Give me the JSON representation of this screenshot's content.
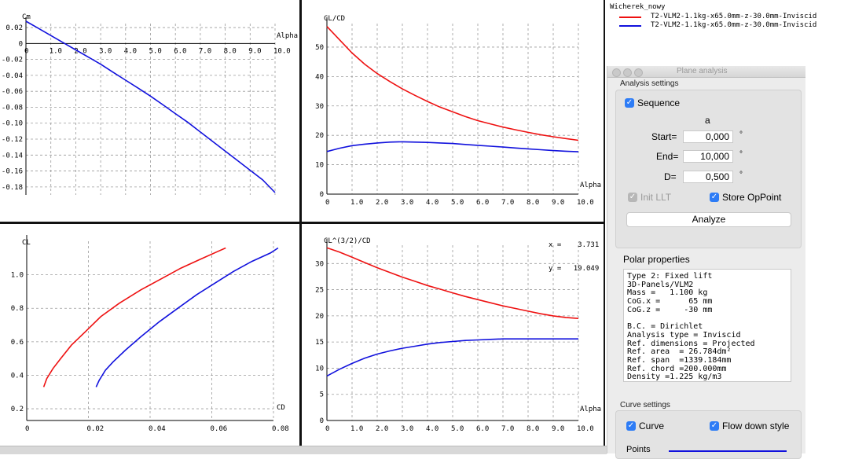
{
  "legend": {
    "title": "Wicherek_nowy",
    "entries": [
      {
        "label": "T2-VLM2-1.1kg-x65.0mm-z-30.0mm-Inviscid",
        "color": "#ee1111"
      },
      {
        "label": "T2-VLM2-1.1kg-x65.0mm-z-30.0mm-Inviscid",
        "color": "#1111dd"
      }
    ]
  },
  "cursor": {
    "x_label": "x =",
    "x_value": "3.731",
    "y_label": "y =",
    "y_value": "19.049"
  },
  "chart_data": [
    {
      "type": "line",
      "id": "cm",
      "ylabel": "Cm",
      "xlabel": "Alpha",
      "xlim": [
        0,
        10
      ],
      "ylim": [
        -0.19,
        0.025
      ],
      "xticks": [
        "0",
        "1.0",
        "2.0",
        "3.0",
        "4.0",
        "5.0",
        "6.0",
        "7.0",
        "8.0",
        "9.0",
        "10.0"
      ],
      "xtick_values": [
        0,
        1,
        2,
        3,
        4,
        5,
        6,
        7,
        8,
        9,
        10
      ],
      "yticks": [
        "0.02",
        "0",
        "-0.02",
        "-0.04",
        "-0.06",
        "-0.08",
        "-0.10",
        "-0.12",
        "-0.14",
        "-0.16",
        "-0.18"
      ],
      "ytick_values": [
        0.02,
        0,
        -0.02,
        -0.04,
        -0.06,
        -0.08,
        -0.1,
        -0.12,
        -0.14,
        -0.16,
        -0.18
      ],
      "series": [
        {
          "name": "blue",
          "color": "#1111dd",
          "x": [
            0,
            0.5,
            1,
            1.5,
            2,
            2.5,
            3,
            3.5,
            4,
            4.5,
            5,
            5.5,
            6,
            6.5,
            7,
            7.5,
            8,
            8.5,
            9,
            9.5,
            10
          ],
          "y": [
            0.028,
            0.019,
            0.01,
            0.001,
            -0.008,
            -0.017,
            -0.026,
            -0.036,
            -0.046,
            -0.056,
            -0.066,
            -0.077,
            -0.088,
            -0.099,
            -0.111,
            -0.123,
            -0.135,
            -0.147,
            -0.159,
            -0.171,
            -0.187
          ]
        }
      ]
    },
    {
      "type": "line",
      "id": "clcd",
      "ylabel": "CL/CD",
      "xlabel": "Alpha",
      "xlim": [
        0,
        10
      ],
      "ylim": [
        0,
        58
      ],
      "xticks": [
        "0",
        "1.0",
        "2.0",
        "3.0",
        "4.0",
        "5.0",
        "6.0",
        "7.0",
        "8.0",
        "9.0",
        "10.0"
      ],
      "xtick_values": [
        0,
        1,
        2,
        3,
        4,
        5,
        6,
        7,
        8,
        9,
        10
      ],
      "yticks": [
        "0",
        "10",
        "20",
        "30",
        "40",
        "50"
      ],
      "ytick_values": [
        0,
        10,
        20,
        30,
        40,
        50
      ],
      "series": [
        {
          "name": "red",
          "color": "#ee1111",
          "x": [
            0,
            0.5,
            1,
            1.5,
            2,
            2.5,
            3,
            3.5,
            4,
            4.5,
            5,
            5.5,
            6,
            6.5,
            7,
            7.5,
            8,
            8.5,
            9,
            9.5,
            10
          ],
          "y": [
            57,
            52.5,
            48,
            44.2,
            41,
            38.3,
            35.8,
            33.6,
            31.5,
            29.6,
            28,
            26.4,
            25,
            23.9,
            22.8,
            21.9,
            21,
            20.2,
            19.5,
            18.9,
            18.3
          ]
        },
        {
          "name": "blue",
          "color": "#1111dd",
          "x": [
            0,
            0.5,
            1,
            1.5,
            2,
            2.5,
            3,
            3.5,
            4,
            4.5,
            5,
            5.5,
            6,
            6.5,
            7,
            7.5,
            8,
            8.5,
            9,
            9.5,
            10
          ],
          "y": [
            14.5,
            15.6,
            16.5,
            17,
            17.4,
            17.7,
            17.8,
            17.7,
            17.6,
            17.4,
            17.2,
            16.9,
            16.6,
            16.3,
            16,
            15.7,
            15.4,
            15.1,
            14.8,
            14.6,
            14.4
          ]
        }
      ]
    },
    {
      "type": "line",
      "id": "cl_cd",
      "ylabel": "CL",
      "xlabel": "CD",
      "xlim": [
        0,
        0.08
      ],
      "ylim": [
        0.13,
        1.2
      ],
      "xticks": [
        "0",
        "0.02",
        "0.04",
        "0.06",
        "0.08"
      ],
      "xtick_values": [
        0,
        0.02,
        0.04,
        0.06,
        0.08
      ],
      "yticks": [
        "0.2",
        "0.4",
        "0.6",
        "0.8",
        "1.0"
      ],
      "ytick_values": [
        0.2,
        0.4,
        0.6,
        0.8,
        1.0
      ],
      "series": [
        {
          "name": "red",
          "color": "#ee1111",
          "x": [
            0.0055,
            0.0065,
            0.0085,
            0.011,
            0.0145,
            0.019,
            0.024,
            0.03,
            0.037,
            0.044,
            0.05,
            0.056,
            0.062,
            0.0645
          ],
          "y": [
            0.33,
            0.38,
            0.44,
            0.5,
            0.58,
            0.66,
            0.75,
            0.83,
            0.91,
            0.98,
            1.04,
            1.09,
            1.14,
            1.16
          ]
        },
        {
          "name": "blue",
          "color": "#1111dd",
          "x": [
            0.0225,
            0.0235,
            0.0255,
            0.028,
            0.032,
            0.037,
            0.043,
            0.049,
            0.055,
            0.061,
            0.067,
            0.073,
            0.079,
            0.0815
          ],
          "y": [
            0.33,
            0.37,
            0.43,
            0.48,
            0.55,
            0.63,
            0.72,
            0.8,
            0.88,
            0.95,
            1.02,
            1.08,
            1.13,
            1.16
          ]
        }
      ]
    },
    {
      "type": "line",
      "id": "cl32cd",
      "ylabel": "CL^(3/2)/CD",
      "xlabel": "Alpha",
      "xlim": [
        0,
        10
      ],
      "ylim": [
        0,
        33.5
      ],
      "xticks": [
        "0",
        "1.0",
        "2.0",
        "3.0",
        "4.0",
        "5.0",
        "6.0",
        "7.0",
        "8.0",
        "9.0",
        "10.0"
      ],
      "xtick_values": [
        0,
        1,
        2,
        3,
        4,
        5,
        6,
        7,
        8,
        9,
        10
      ],
      "yticks": [
        "0",
        "5",
        "10",
        "15",
        "20",
        "25",
        "30"
      ],
      "ytick_values": [
        0,
        5,
        10,
        15,
        20,
        25,
        30
      ],
      "series": [
        {
          "name": "red",
          "color": "#ee1111",
          "x": [
            0,
            0.5,
            1,
            1.5,
            2,
            2.5,
            3,
            3.5,
            4,
            4.5,
            5,
            5.5,
            6,
            6.5,
            7,
            7.5,
            8,
            8.5,
            9,
            9.5,
            10
          ],
          "y": [
            33,
            32.2,
            31.2,
            30.2,
            29.2,
            28.3,
            27.4,
            26.6,
            25.8,
            25.1,
            24.4,
            23.7,
            23.1,
            22.5,
            21.9,
            21.4,
            20.9,
            20.4,
            20.0,
            19.7,
            19.5
          ]
        },
        {
          "name": "blue",
          "color": "#1111dd",
          "x": [
            0,
            0.5,
            1,
            1.5,
            2,
            2.5,
            3,
            3.5,
            4,
            4.5,
            5,
            5.5,
            6,
            6.5,
            7,
            7.5,
            8,
            8.5,
            9,
            9.5,
            10
          ],
          "y": [
            8.5,
            9.8,
            10.9,
            11.9,
            12.7,
            13.3,
            13.8,
            14.2,
            14.6,
            14.9,
            15.1,
            15.3,
            15.4,
            15.5,
            15.6,
            15.6,
            15.6,
            15.6,
            15.6,
            15.6,
            15.6
          ]
        }
      ]
    }
  ],
  "dialog": {
    "title": "Plane analysis",
    "analysis_settings": "Analysis settings",
    "sequence_label": "Sequence",
    "variable_label": "a",
    "start_label": "Start=",
    "start_value": "0,000",
    "end_label": "End=",
    "end_value": "10,000",
    "delta_label": "D=",
    "delta_value": "0,500",
    "unit": "°",
    "init_llt_label": "Init LLT",
    "store_oppoint_label": "Store OpPoint",
    "analyze_label": "Analyze",
    "polar_properties": "Polar properties",
    "polar_text": "Type 2: Fixed lift\n3D-Panels/VLM2\nMass =   1.100 kg\nCoG.x =      65 mm\nCoG.z =     -30 mm\n\nB.C. = Dirichlet\nAnalysis type = Inviscid\nRef. dimensions = Projected\nRef. area  = 26.784dm²\nRef. span  =1339.184mm\nRef. chord =200.000mm\nDensity =1.225 kg/m3",
    "curve_settings": "Curve settings",
    "curve_label": "Curve",
    "flow_down_label": "Flow down style",
    "points_label": "Points"
  }
}
